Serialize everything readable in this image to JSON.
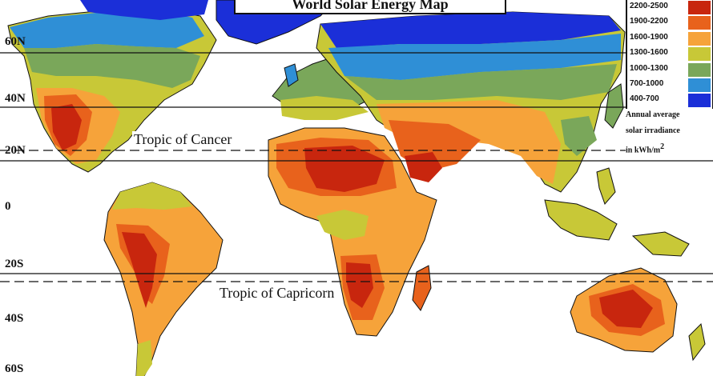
{
  "title": "World Solar Energy  Map",
  "latitude_labels": [
    "60N",
    "40N",
    "20N",
    "0",
    "20S",
    "40S",
    "60S"
  ],
  "tropics": {
    "cancer": "Tropic of Cancer",
    "capricorn": "Tropic of Capricorn"
  },
  "legend": {
    "ranges": [
      {
        "label": "2200-2500",
        "color": "#c8260e"
      },
      {
        "label": "1900-2200",
        "color": "#e8621c"
      },
      {
        "label": "1600-1900",
        "color": "#f6a33a"
      },
      {
        "label": "1300-1600",
        "color": "#c8c837"
      },
      {
        "label": "1000-1300",
        "color": "#7aa75a"
      },
      {
        "label": "700-1000",
        "color": "#2f8fd6"
      },
      {
        "label": "400-700",
        "color": "#1b2fd8"
      }
    ],
    "caption_line1": "Annual average",
    "caption_line2": "solar irradiance",
    "caption_line3": "in kWh/m",
    "caption_sup": "2"
  },
  "colors": {
    "ocean": "#ffffff",
    "land_outline": "#111111",
    "gridline": "#111111"
  }
}
